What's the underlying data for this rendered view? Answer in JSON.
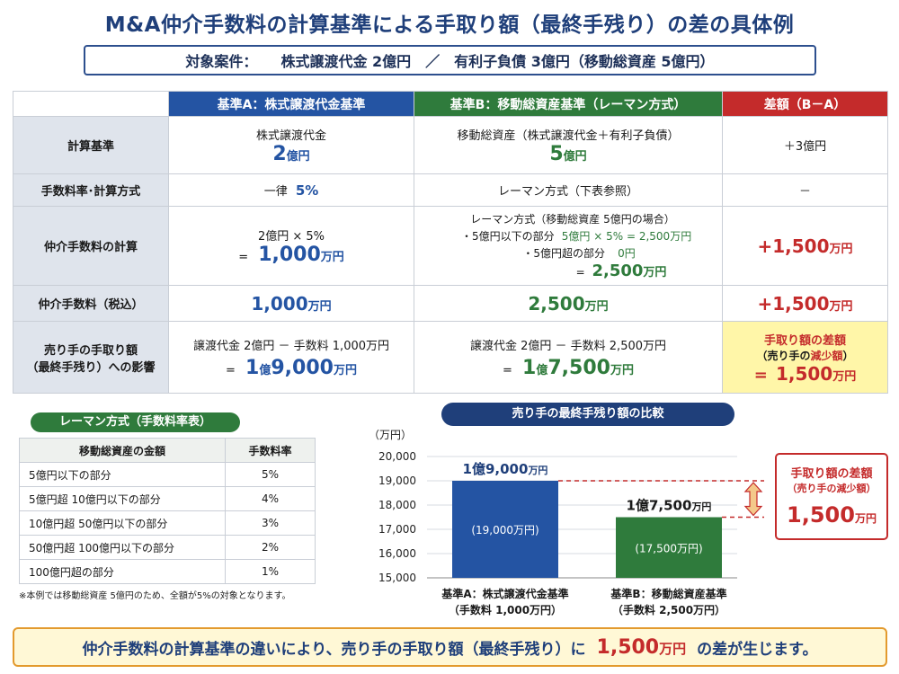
{
  "title": "M&A仲介手数料の計算基準による手取り額（最終手残り）の差の具体例",
  "case": {
    "label": "対象案件：",
    "text": "株式譲渡代金 2億円　／　有利子負債 3億円（移動総資産 5億円）"
  },
  "table": {
    "headers": {
      "a": "基準A：株式譲渡代金基準",
      "b": "基準B：移動総資産基準（レーマン方式）",
      "diff": "差額（B－A）"
    },
    "rows": {
      "basis": {
        "label": "計算基準",
        "a_line1": "株式譲渡代金",
        "a_num": "2",
        "a_unit": "億円",
        "b_line1": "移動総資産（株式譲渡代金＋有利子負債）",
        "b_num": "5",
        "b_unit": "億円",
        "diff": "＋3億円"
      },
      "rate": {
        "label": "手数料率･計算方式",
        "a_prefix": "一律",
        "a_num": "5%",
        "b": "レーマン方式（下表参照）",
        "diff": "－"
      },
      "calc": {
        "label": "仲介手数料の計算",
        "a_line1": "2億円 × 5%",
        "a_eq": "=",
        "a_num": "1,000",
        "a_unit": "万円",
        "b_head": "レーマン方式（移動総資産 5億円の場合）",
        "b_item1_label": "・5億円以下の部分",
        "b_item1_value": "5億円 × 5% = 2,500万円",
        "b_item2_label": "・5億円超の部分",
        "b_item2_value": "0円",
        "b_eq": "=",
        "b_num": "2,500",
        "b_unit": "万円",
        "diff_num": "+1,500",
        "diff_unit": "万円"
      },
      "fee": {
        "label": "仲介手数料（税込）",
        "a_num": "1,000",
        "a_unit": "万円",
        "b_num": "2,500",
        "b_unit": "万円",
        "diff_num": "+1,500",
        "diff_unit": "万円"
      },
      "net": {
        "label_line1": "売り手の手取り額",
        "label_line2": "（最終手残り）への影響",
        "a_line1": "譲渡代金 2億円 － 手数料 1,000万円",
        "a_eq": "=",
        "a_oku": "1",
        "a_oku_unit": "億",
        "a_num": "9,000",
        "a_unit": "万円",
        "b_line1": "譲渡代金 2億円 － 手数料 2,500万円",
        "b_eq": "=",
        "b_oku": "1",
        "b_oku_unit": "億",
        "b_num": "7,500",
        "b_unit": "万円",
        "diff_line1": "手取り額の差額",
        "diff_line2_pre": "（売り手の",
        "diff_line2_em": "減少額",
        "diff_line2_post": "）",
        "diff_eq": "=",
        "diff_num": "1,500",
        "diff_unit": "万円"
      }
    }
  },
  "rate_table": {
    "tag": "レーマン方式（手数料率表）",
    "col1": "移動総資産の金額",
    "col2": "手数料率",
    "rows": [
      {
        "range": "5億円以下の部分",
        "rate": "5%"
      },
      {
        "range": "5億円超 10億円以下の部分",
        "rate": "4%"
      },
      {
        "range": "10億円超 50億円以下の部分",
        "rate": "3%"
      },
      {
        "range": "50億円超 100億円以下の部分",
        "rate": "2%"
      },
      {
        "range": "100億円超の部分",
        "rate": "1%"
      }
    ],
    "note": "※本例では移動総資産 5億円のため、全額が5%の対象となります。"
  },
  "chart_data": {
    "type": "bar",
    "title": "売り手の最終手残り額の比較",
    "ylabel": "（万円）",
    "ylim": [
      15000,
      20000
    ],
    "yticks": [
      15000,
      16000,
      17000,
      18000,
      19000,
      20000
    ],
    "ytick_labels": [
      "15,000",
      "16,000",
      "17,000",
      "18,000",
      "19,000",
      "20,000"
    ],
    "categories": [
      "基準A：株式譲渡代金基準",
      "基準B：移動総資産基準"
    ],
    "category_sublabels": [
      "（手数料 1,000万円）",
      "（手数料 2,500万円）"
    ],
    "values": [
      19000,
      17500
    ],
    "top_labels": [
      "1億9,000",
      "1億7,500"
    ],
    "top_label_unit": "万円",
    "inner_labels": [
      "(19,000万円)",
      "(17,500万円)"
    ],
    "colors": [
      "#2454a3",
      "#2f7b3c"
    ],
    "grid": true
  },
  "diff_box": {
    "line1": "手取り額の差額",
    "line2": "（売り手の減少額）",
    "num": "1,500",
    "unit": "万円"
  },
  "banner": {
    "pre": "仲介手数料の計算基準の違いにより、売り手の手取り額（最終手残り）に",
    "num": "1,500",
    "unit": "万円",
    "post": "の差が生じます。"
  }
}
